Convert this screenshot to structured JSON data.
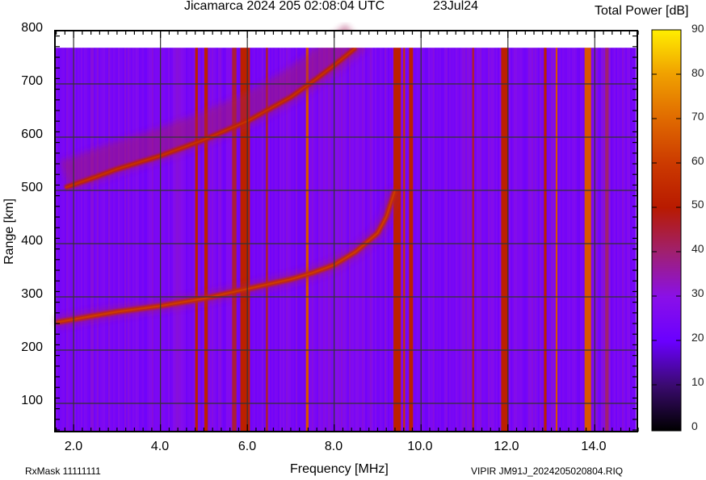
{
  "header": {
    "title": "Jicamarca 2024 205 02:08:04 UTC",
    "date": "23Jul24",
    "colorbar_title": "Total Power [dB]"
  },
  "axes": {
    "xlabel": "Frequency [MHz]",
    "ylabel": "Range [km]",
    "xticks": [
      "2.0",
      "4.0",
      "6.0",
      "8.0",
      "10.0",
      "12.0",
      "14.0"
    ],
    "yticks": [
      "800",
      "700",
      "600",
      "500",
      "400",
      "300",
      "200",
      "100"
    ]
  },
  "colorbar": {
    "ticks": [
      "90",
      "80",
      "70",
      "60",
      "50",
      "40",
      "30",
      "20",
      "10",
      "0"
    ],
    "colors": {
      "c0": "#000000",
      "c10": "#3a0a6e",
      "c20": "#6a00ff",
      "c30": "#8a10e8",
      "c40": "#a02070",
      "c50": "#b81a00",
      "c60": "#cc3a00",
      "c70": "#e06a00",
      "c80": "#f0a000",
      "c90": "#ffee00"
    }
  },
  "footer": {
    "rxmask": "RxMask 11111111",
    "fileinfo": "VIPIR  JM91J_2024205020804.RIQ"
  },
  "chart_data": {
    "type": "heatmap",
    "title": "Jicamarca 2024 205 02:08:04 UTC  23Jul24",
    "xlabel": "Frequency [MHz]",
    "ylabel": "Range [km]",
    "colorbar_label": "Total Power [dB]",
    "xlim": [
      1.57,
      14.98
    ],
    "ylim": [
      47,
      800
    ],
    "data_range_top_km": 768,
    "zlim": [
      0,
      90
    ],
    "grid": true,
    "background_level_db": 25,
    "traces": [
      {
        "name": "lower echo trace (1st hop)",
        "level_db": 55,
        "points": [
          [
            1.6,
            252
          ],
          [
            2.5,
            265
          ],
          [
            3.0,
            272
          ],
          [
            4.0,
            283
          ],
          [
            5.0,
            297
          ],
          [
            6.0,
            315
          ],
          [
            7.0,
            333
          ],
          [
            7.5,
            345
          ],
          [
            8.0,
            360
          ],
          [
            8.5,
            385
          ],
          [
            9.0,
            420
          ],
          [
            9.2,
            450
          ],
          [
            9.4,
            500
          ]
        ]
      },
      {
        "name": "upper echo trace (2nd hop)",
        "level_db": 52,
        "points": [
          [
            1.8,
            505
          ],
          [
            2.5,
            525
          ],
          [
            3.0,
            540
          ],
          [
            4.0,
            565
          ],
          [
            5.0,
            595
          ],
          [
            6.0,
            630
          ],
          [
            7.0,
            675
          ],
          [
            7.6,
            710
          ],
          [
            8.0,
            735
          ],
          [
            8.5,
            768
          ]
        ]
      }
    ],
    "interference_bands": [
      {
        "freq_mhz": 4.83,
        "width_mhz": 0.06,
        "level_db": 52
      },
      {
        "freq_mhz": 5.05,
        "width_mhz": 0.08,
        "level_db": 52
      },
      {
        "freq_mhz": 5.7,
        "width_mhz": 0.1,
        "level_db": 45
      },
      {
        "freq_mhz": 5.95,
        "width_mhz": 0.22,
        "level_db": 52
      },
      {
        "freq_mhz": 6.45,
        "width_mhz": 0.05,
        "level_db": 45
      },
      {
        "freq_mhz": 7.38,
        "width_mhz": 0.06,
        "level_db": 65
      },
      {
        "freq_mhz": 9.45,
        "width_mhz": 0.17,
        "level_db": 52
      },
      {
        "freq_mhz": 9.61,
        "width_mhz": 0.04,
        "level_db": 58
      },
      {
        "freq_mhz": 9.77,
        "width_mhz": 0.09,
        "level_db": 52
      },
      {
        "freq_mhz": 11.2,
        "width_mhz": 0.05,
        "level_db": 45
      },
      {
        "freq_mhz": 11.93,
        "width_mhz": 0.17,
        "level_db": 52
      },
      {
        "freq_mhz": 12.86,
        "width_mhz": 0.06,
        "level_db": 52
      },
      {
        "freq_mhz": 13.12,
        "width_mhz": 0.04,
        "level_db": 65
      },
      {
        "freq_mhz": 13.84,
        "width_mhz": 0.15,
        "level_db": 66
      },
      {
        "freq_mhz": 14.28,
        "width_mhz": 0.08,
        "level_db": 40
      }
    ]
  }
}
